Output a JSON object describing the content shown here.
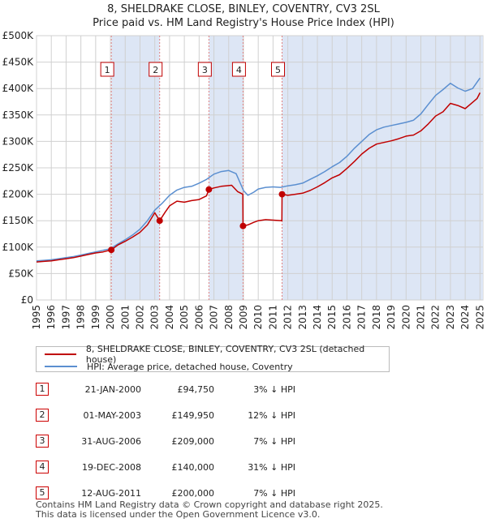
{
  "header": {
    "title": "8, SHELDRAKE CLOSE, BINLEY, COVENTRY, CV3 2SL",
    "subtitle": "Price paid vs. HM Land Registry's House Price Index (HPI)"
  },
  "legend": {
    "property_label": "8, SHELDRAKE CLOSE, BINLEY, COVENTRY, CV3 2SL (detached house)",
    "hpi_label": "HPI: Average price, detached house, Coventry"
  },
  "sales": [
    {
      "num": "1",
      "date": "21-JAN-2000",
      "price": "£94,750",
      "pct": "3% ↓ HPI"
    },
    {
      "num": "2",
      "date": "01-MAY-2003",
      "price": "£149,950",
      "pct": "12% ↓ HPI"
    },
    {
      "num": "3",
      "date": "31-AUG-2006",
      "price": "£209,000",
      "pct": "7% ↓ HPI"
    },
    {
      "num": "4",
      "date": "19-DEC-2008",
      "price": "£140,000",
      "pct": "31% ↓ HPI"
    },
    {
      "num": "5",
      "date": "12-AUG-2011",
      "price": "£200,000",
      "pct": "7% ↓ HPI"
    }
  ],
  "footer": {
    "line1": "Contains HM Land Registry data © Crown copyright and database right 2025.",
    "line2": "This data is licensed under the Open Government Licence v3.0."
  },
  "colors": {
    "property": "#c00000",
    "hpi": "#5b8fd0",
    "shade": "#dde6f5",
    "grid": "#d0d0d0"
  },
  "chart_data": {
    "type": "line",
    "title": "Price paid vs. HM Land Registry's House Price Index (HPI)",
    "xlim": [
      1995,
      2025.2
    ],
    "ylim": [
      0,
      500000
    ],
    "x_ticks": [
      "1995",
      "1996",
      "1997",
      "1998",
      "1999",
      "2000",
      "2001",
      "2002",
      "2003",
      "2004",
      "2005",
      "2006",
      "2007",
      "2008",
      "2009",
      "2010",
      "2011",
      "2012",
      "2013",
      "2014",
      "2015",
      "2016",
      "2017",
      "2018",
      "2019",
      "2020",
      "2021",
      "2022",
      "2023",
      "2024",
      "2025"
    ],
    "y_ticks": [
      {
        "value": 0,
        "label": "£0"
      },
      {
        "value": 50000,
        "label": "£50K"
      },
      {
        "value": 100000,
        "label": "£100K"
      },
      {
        "value": 150000,
        "label": "£150K"
      },
      {
        "value": 200000,
        "label": "£200K"
      },
      {
        "value": 250000,
        "label": "£250K"
      },
      {
        "value": 300000,
        "label": "£300K"
      },
      {
        "value": 350000,
        "label": "£350K"
      },
      {
        "value": 400000,
        "label": "£400K"
      },
      {
        "value": 450000,
        "label": "£450K"
      },
      {
        "value": 500000,
        "label": "£500K"
      }
    ],
    "shaded_ranges": [
      [
        2000.06,
        2003.33
      ],
      [
        2006.66,
        2008.97
      ],
      [
        2011.61,
        2025.2
      ]
    ],
    "markers": [
      {
        "label": "1",
        "x": 2000.06,
        "y": 94750
      },
      {
        "label": "2",
        "x": 2003.33,
        "y": 149950
      },
      {
        "label": "3",
        "x": 2006.66,
        "y": 209000
      },
      {
        "label": "4",
        "x": 2008.97,
        "y": 140000
      },
      {
        "label": "5",
        "x": 2011.61,
        "y": 200000
      }
    ],
    "series": [
      {
        "name": "8, SHELDRAKE CLOSE, BINLEY, COVENTRY, CV3 2SL (detached house)",
        "x": [
          1995.0,
          1995.5,
          1996.0,
          1996.5,
          1997.0,
          1997.5,
          1998.0,
          1998.5,
          1999.0,
          1999.5,
          2000.06,
          2000.5,
          2001.0,
          2001.5,
          2002.0,
          2002.5,
          2003.0,
          2003.33,
          2003.7,
          2004.0,
          2004.5,
          2005.0,
          2005.5,
          2006.0,
          2006.5,
          2006.66,
          2007.0,
          2007.5,
          2007.8,
          2008.2,
          2008.6,
          2008.96,
          2008.97,
          2009.3,
          2009.7,
          2010.0,
          2010.5,
          2011.0,
          2011.6,
          2011.61,
          2012.0,
          2012.5,
          2013.0,
          2013.5,
          2014.0,
          2014.5,
          2015.0,
          2015.5,
          2016.0,
          2016.5,
          2017.0,
          2017.5,
          2018.0,
          2018.5,
          2019.0,
          2019.5,
          2020.0,
          2020.5,
          2021.0,
          2021.5,
          2022.0,
          2022.5,
          2023.0,
          2023.5,
          2024.0,
          2024.5,
          2024.8,
          2025.0
        ],
        "y": [
          72000,
          73000,
          74000,
          76000,
          78000,
          80000,
          83000,
          86000,
          89000,
          91000,
          94750,
          104000,
          111000,
          119000,
          128000,
          142000,
          165000,
          149950,
          166000,
          178000,
          187000,
          185000,
          188000,
          190000,
          197000,
          209000,
          212000,
          215000,
          216000,
          217000,
          205000,
          200000,
          140000,
          142000,
          147000,
          150000,
          152000,
          151000,
          150000,
          200000,
          198000,
          200000,
          202000,
          207000,
          214000,
          222000,
          231000,
          237000,
          249000,
          262000,
          276000,
          287000,
          295000,
          298000,
          301000,
          305000,
          310000,
          312000,
          320000,
          333000,
          348000,
          356000,
          372000,
          368000,
          362000,
          374000,
          381000,
          392000
        ]
      },
      {
        "name": "HPI: Average price, detached house, Coventry",
        "x": [
          1995.0,
          1995.5,
          1996.0,
          1996.5,
          1997.0,
          1997.5,
          1998.0,
          1998.5,
          1999.0,
          1999.5,
          2000.0,
          2000.5,
          2001.0,
          2001.5,
          2002.0,
          2002.5,
          2003.0,
          2003.5,
          2004.0,
          2004.5,
          2005.0,
          2005.5,
          2006.0,
          2006.5,
          2007.0,
          2007.5,
          2008.0,
          2008.5,
          2009.0,
          2009.3,
          2009.7,
          2010.0,
          2010.5,
          2011.0,
          2011.5,
          2012.0,
          2012.5,
          2013.0,
          2013.5,
          2014.0,
          2014.5,
          2015.0,
          2015.5,
          2016.0,
          2016.5,
          2017.0,
          2017.5,
          2018.0,
          2018.5,
          2019.0,
          2019.5,
          2020.0,
          2020.5,
          2021.0,
          2021.5,
          2022.0,
          2022.5,
          2023.0,
          2023.5,
          2024.0,
          2024.5,
          2024.8,
          2025.0
        ],
        "y": [
          74000,
          75000,
          76000,
          78000,
          80000,
          82000,
          85000,
          88000,
          91000,
          94000,
          97000,
          106000,
          114000,
          123000,
          134000,
          150000,
          170000,
          183000,
          198000,
          208000,
          213000,
          215000,
          221000,
          228000,
          238000,
          243000,
          245000,
          239000,
          207000,
          198000,
          204000,
          210000,
          213000,
          214000,
          213000,
          216000,
          218000,
          221000,
          228000,
          235000,
          243000,
          252000,
          260000,
          272000,
          287000,
          300000,
          313000,
          322000,
          327000,
          330000,
          333000,
          336000,
          340000,
          352000,
          370000,
          387000,
          398000,
          410000,
          401000,
          395000,
          400000,
          412000,
          420000
        ]
      }
    ]
  }
}
